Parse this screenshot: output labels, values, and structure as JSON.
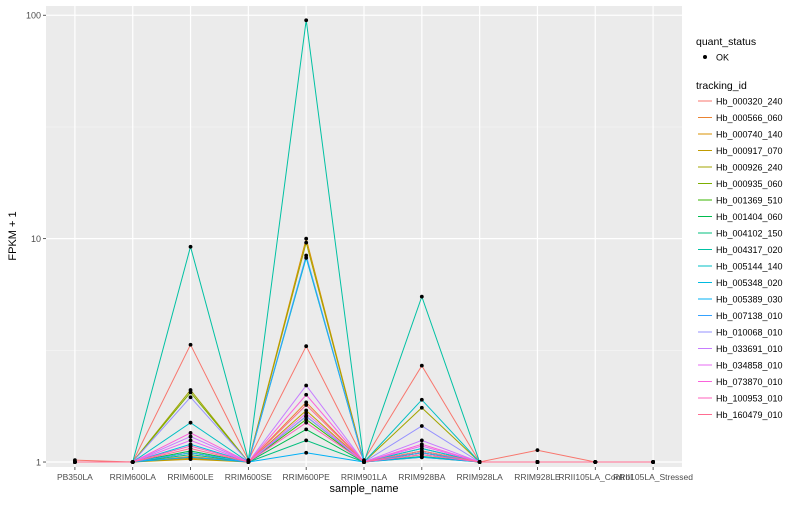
{
  "chart_data": {
    "type": "line",
    "xlabel": "sample_name",
    "ylabel": "FPKM + 1",
    "y_scale": "log10",
    "ylim": [
      0.95,
      110
    ],
    "yticks": [
      1,
      10,
      100
    ],
    "grid": true,
    "legend_position": "right",
    "categories": [
      "PB350LA",
      "RRIM600LA",
      "RRIM600LE",
      "RRIM600SE",
      "RRIM600PE",
      "RRIM901LA",
      "RRIM928BA",
      "RRIM928LA",
      "RRIM928LE",
      "RRII105LA_Control",
      "RRII105LA_Stressed"
    ],
    "legend_quant": {
      "title": "quant_status",
      "entries": [
        "OK"
      ]
    },
    "legend_tracking": {
      "title": "tracking_id"
    },
    "series": [
      {
        "name": "Hb_000320_240",
        "color": "#F8766D",
        "values": [
          1.02,
          1.0,
          3.35,
          1.02,
          3.3,
          1.02,
          2.7,
          1.0,
          1.13,
          1.0,
          1.0
        ]
      },
      {
        "name": "Hb_000566_060",
        "color": "#EA8331",
        "values": [
          1.0,
          1.0,
          1.06,
          1.0,
          1.85,
          1.0,
          1.1,
          1.0,
          1.0,
          1.0,
          1.0
        ]
      },
      {
        "name": "Hb_000740_140",
        "color": "#D89000",
        "values": [
          1.0,
          1.0,
          1.04,
          1.0,
          10.0,
          1.0,
          1.08,
          1.0,
          1.0,
          1.0,
          1.0
        ]
      },
      {
        "name": "Hb_000917_070",
        "color": "#C09B00",
        "values": [
          1.0,
          1.0,
          1.03,
          1.0,
          1.7,
          1.0,
          1.05,
          1.0,
          1.0,
          1.0,
          1.0
        ]
      },
      {
        "name": "Hb_000926_240",
        "color": "#A3A500",
        "values": [
          1.0,
          1.0,
          2.1,
          1.0,
          9.6,
          1.0,
          1.75,
          1.0,
          1.0,
          1.0,
          1.0
        ]
      },
      {
        "name": "Hb_000935_060",
        "color": "#7CAE00",
        "values": [
          1.0,
          1.0,
          2.05,
          1.0,
          1.6,
          1.0,
          1.15,
          1.0,
          1.0,
          1.0,
          1.0
        ]
      },
      {
        "name": "Hb_001369_510",
        "color": "#39B600",
        "values": [
          1.0,
          1.0,
          1.1,
          1.0,
          1.55,
          1.0,
          1.12,
          1.0,
          1.0,
          1.0,
          1.0
        ]
      },
      {
        "name": "Hb_001404_060",
        "color": "#00BB4E",
        "values": [
          1.0,
          1.0,
          1.12,
          1.0,
          1.4,
          1.0,
          1.1,
          1.0,
          1.0,
          1.0,
          1.0
        ]
      },
      {
        "name": "Hb_004102_150",
        "color": "#00BF7D",
        "values": [
          1.0,
          1.0,
          1.08,
          1.0,
          1.25,
          1.0,
          1.06,
          1.0,
          1.0,
          1.0,
          1.0
        ]
      },
      {
        "name": "Hb_004317_020",
        "color": "#00C1A3",
        "values": [
          1.0,
          1.0,
          9.2,
          1.02,
          95.0,
          1.0,
          5.5,
          1.0,
          1.0,
          1.0,
          1.0
        ]
      },
      {
        "name": "Hb_005144_140",
        "color": "#00BFC4",
        "values": [
          1.0,
          1.0,
          1.5,
          1.0,
          8.2,
          1.0,
          1.9,
          1.0,
          1.0,
          1.0,
          1.0
        ]
      },
      {
        "name": "Hb_005348_020",
        "color": "#00BAE0",
        "values": [
          1.0,
          1.0,
          1.2,
          1.0,
          1.6,
          1.0,
          1.15,
          1.0,
          1.0,
          1.0,
          1.0
        ]
      },
      {
        "name": "Hb_005389_030",
        "color": "#00B0F6",
        "values": [
          1.0,
          1.0,
          1.05,
          1.0,
          1.1,
          1.0,
          1.05,
          1.0,
          1.0,
          1.0,
          1.0
        ]
      },
      {
        "name": "Hb_007138_010",
        "color": "#35A2FF",
        "values": [
          1.0,
          1.0,
          1.1,
          1.0,
          8.4,
          1.0,
          1.1,
          1.0,
          1.0,
          1.0,
          1.0
        ]
      },
      {
        "name": "Hb_010068_010",
        "color": "#9590FF",
        "values": [
          1.0,
          1.0,
          1.95,
          1.0,
          1.6,
          1.0,
          1.45,
          1.0,
          1.0,
          1.0,
          1.0
        ]
      },
      {
        "name": "Hb_033691_010",
        "color": "#C77CFF",
        "values": [
          1.0,
          1.0,
          1.3,
          1.0,
          2.2,
          1.0,
          1.25,
          1.0,
          1.0,
          1.0,
          1.0
        ]
      },
      {
        "name": "Hb_034858_010",
        "color": "#E76BF3",
        "values": [
          1.0,
          1.0,
          1.25,
          1.0,
          1.65,
          1.0,
          1.18,
          1.0,
          1.0,
          1.0,
          1.0
        ]
      },
      {
        "name": "Hb_073870_010",
        "color": "#FA62DB",
        "values": [
          1.0,
          1.0,
          1.35,
          1.0,
          2.0,
          1.0,
          1.2,
          1.0,
          1.0,
          1.0,
          1.0
        ]
      },
      {
        "name": "Hb_100953_010",
        "color": "#FF62BC",
        "values": [
          1.0,
          1.0,
          1.18,
          1.0,
          1.5,
          1.0,
          1.08,
          1.0,
          1.0,
          1.0,
          1.0
        ]
      },
      {
        "name": "Hb_160479_010",
        "color": "#FF6C91",
        "values": [
          1.0,
          1.0,
          1.15,
          1.0,
          1.8,
          1.0,
          1.12,
          1.0,
          1.0,
          1.0,
          1.0
        ]
      }
    ]
  }
}
